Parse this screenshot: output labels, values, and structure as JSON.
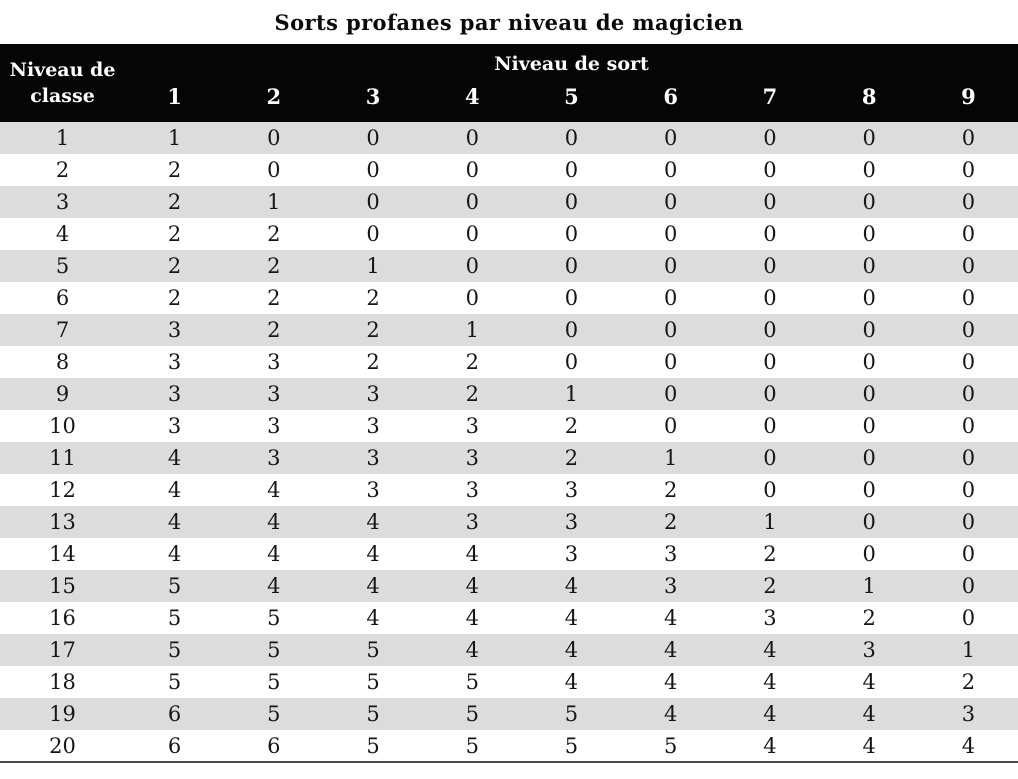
{
  "title": "Sorts profanes par niveau de magicien",
  "table": {
    "corner_header_line1": "Niveau de",
    "corner_header_line2": "classe",
    "group_header": "Niveau de sort",
    "spell_level_columns": [
      "1",
      "2",
      "3",
      "4",
      "5",
      "6",
      "7",
      "8",
      "9"
    ],
    "rows": [
      {
        "class_level": "1",
        "slots": [
          "1",
          "0",
          "0",
          "0",
          "0",
          "0",
          "0",
          "0",
          "0"
        ]
      },
      {
        "class_level": "2",
        "slots": [
          "2",
          "0",
          "0",
          "0",
          "0",
          "0",
          "0",
          "0",
          "0"
        ]
      },
      {
        "class_level": "3",
        "slots": [
          "2",
          "1",
          "0",
          "0",
          "0",
          "0",
          "0",
          "0",
          "0"
        ]
      },
      {
        "class_level": "4",
        "slots": [
          "2",
          "2",
          "0",
          "0",
          "0",
          "0",
          "0",
          "0",
          "0"
        ]
      },
      {
        "class_level": "5",
        "slots": [
          "2",
          "2",
          "1",
          "0",
          "0",
          "0",
          "0",
          "0",
          "0"
        ]
      },
      {
        "class_level": "6",
        "slots": [
          "2",
          "2",
          "2",
          "0",
          "0",
          "0",
          "0",
          "0",
          "0"
        ]
      },
      {
        "class_level": "7",
        "slots": [
          "3",
          "2",
          "2",
          "1",
          "0",
          "0",
          "0",
          "0",
          "0"
        ]
      },
      {
        "class_level": "8",
        "slots": [
          "3",
          "3",
          "2",
          "2",
          "0",
          "0",
          "0",
          "0",
          "0"
        ]
      },
      {
        "class_level": "9",
        "slots": [
          "3",
          "3",
          "3",
          "2",
          "1",
          "0",
          "0",
          "0",
          "0"
        ]
      },
      {
        "class_level": "10",
        "slots": [
          "3",
          "3",
          "3",
          "3",
          "2",
          "0",
          "0",
          "0",
          "0"
        ]
      },
      {
        "class_level": "11",
        "slots": [
          "4",
          "3",
          "3",
          "3",
          "2",
          "1",
          "0",
          "0",
          "0"
        ]
      },
      {
        "class_level": "12",
        "slots": [
          "4",
          "4",
          "3",
          "3",
          "3",
          "2",
          "0",
          "0",
          "0"
        ]
      },
      {
        "class_level": "13",
        "slots": [
          "4",
          "4",
          "4",
          "3",
          "3",
          "2",
          "1",
          "0",
          "0"
        ]
      },
      {
        "class_level": "14",
        "slots": [
          "4",
          "4",
          "4",
          "4",
          "3",
          "3",
          "2",
          "0",
          "0"
        ]
      },
      {
        "class_level": "15",
        "slots": [
          "5",
          "4",
          "4",
          "4",
          "4",
          "3",
          "2",
          "1",
          "0"
        ]
      },
      {
        "class_level": "16",
        "slots": [
          "5",
          "5",
          "4",
          "4",
          "4",
          "4",
          "3",
          "2",
          "0"
        ]
      },
      {
        "class_level": "17",
        "slots": [
          "5",
          "5",
          "5",
          "4",
          "4",
          "4",
          "4",
          "3",
          "1"
        ]
      },
      {
        "class_level": "18",
        "slots": [
          "5",
          "5",
          "5",
          "5",
          "4",
          "4",
          "4",
          "4",
          "2"
        ]
      },
      {
        "class_level": "19",
        "slots": [
          "6",
          "5",
          "5",
          "5",
          "5",
          "4",
          "4",
          "4",
          "3"
        ]
      },
      {
        "class_level": "20",
        "slots": [
          "6",
          "6",
          "5",
          "5",
          "5",
          "5",
          "4",
          "4",
          "4"
        ]
      }
    ]
  },
  "colors": {
    "header_bg": "#050505",
    "header_text": "#ffffff",
    "stripe_gray": "#dcdcdc",
    "row_white": "#ffffff",
    "bottom_border": "#4a4a4a"
  }
}
